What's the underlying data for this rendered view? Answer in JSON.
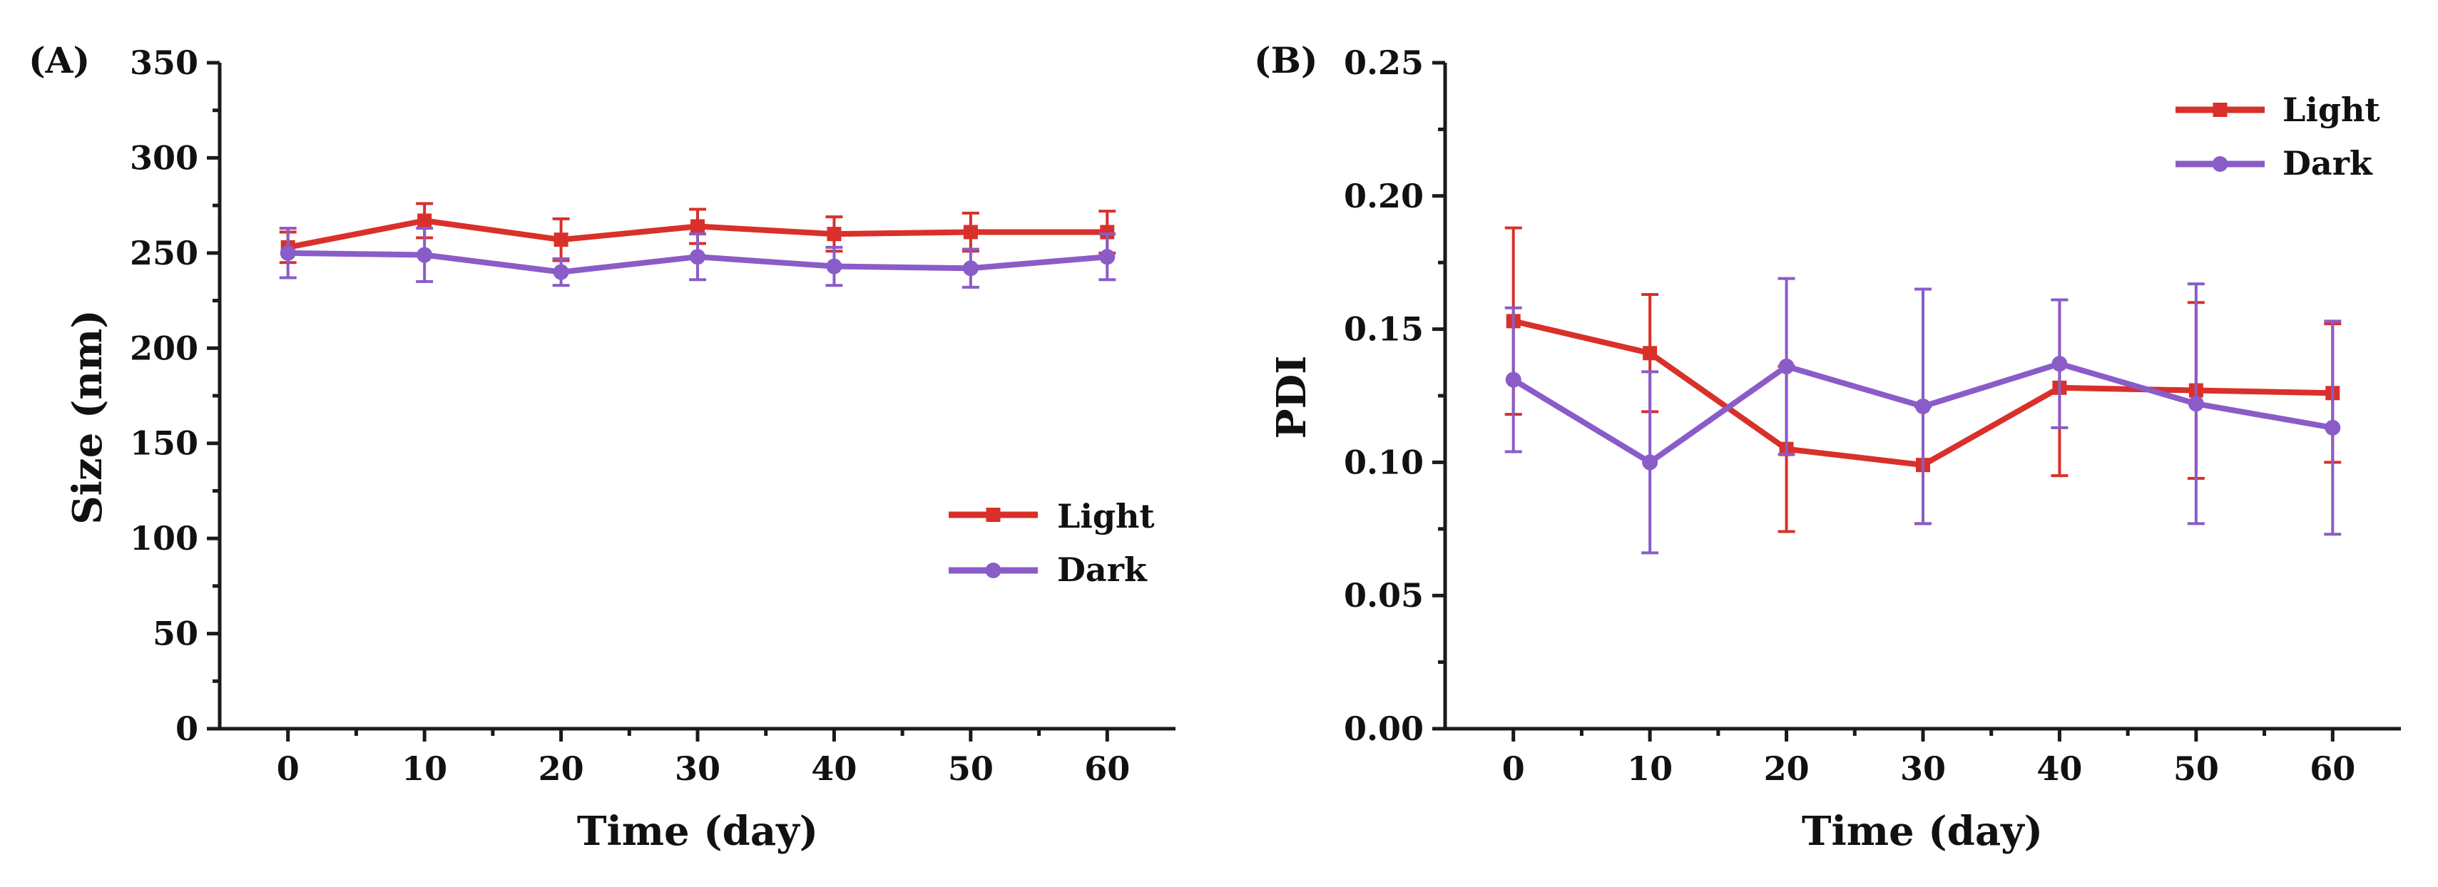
{
  "colors": {
    "light": "#d9302a",
    "dark": "#8a5cc8",
    "axis": "#1a1a1a"
  },
  "chart_data": [
    {
      "type": "line",
      "panel_label": "(A)",
      "xlabel": "Time (day)",
      "ylabel": "Size (nm)",
      "xlim": [
        -5,
        65
      ],
      "ylim": [
        0,
        350
      ],
      "xticks": [
        0,
        10,
        20,
        30,
        40,
        50,
        60
      ],
      "yticks": [
        0,
        50,
        100,
        150,
        200,
        250,
        300,
        350
      ],
      "ytick_labels": [
        "0",
        "50",
        "100",
        "150",
        "200",
        "250",
        "300",
        "350"
      ],
      "legend_position": "lower-right",
      "x": [
        0,
        10,
        20,
        30,
        40,
        50,
        60
      ],
      "series": [
        {
          "name": "Light",
          "color_key": "light",
          "marker": "square",
          "values": [
            253,
            267,
            257,
            264,
            260,
            261,
            261
          ],
          "errors": [
            8,
            9,
            11,
            9,
            9,
            10,
            11
          ]
        },
        {
          "name": "Dark",
          "color_key": "dark",
          "marker": "circle",
          "values": [
            250,
            249,
            240,
            248,
            243,
            242,
            248
          ],
          "errors": [
            13,
            14,
            7,
            12,
            10,
            10,
            12
          ]
        }
      ]
    },
    {
      "type": "line",
      "panel_label": "(B)",
      "xlabel": "Time (day)",
      "ylabel": "PDI",
      "xlim": [
        -5,
        65
      ],
      "ylim": [
        0,
        0.25
      ],
      "xticks": [
        0,
        10,
        20,
        30,
        40,
        50,
        60
      ],
      "yticks": [
        0,
        0.05,
        0.1,
        0.15,
        0.2,
        0.25
      ],
      "ytick_labels": [
        "0.00",
        "0.05",
        "0.10",
        "0.15",
        "0.20",
        "0.25"
      ],
      "legend_position": "top-right",
      "x": [
        0,
        10,
        20,
        30,
        40,
        50,
        60
      ],
      "series": [
        {
          "name": "Light",
          "color_key": "light",
          "marker": "square",
          "values": [
            0.153,
            0.141,
            0.105,
            0.099,
            0.128,
            0.127,
            0.126
          ],
          "errors": [
            0.035,
            0.022,
            0.031,
            0.022,
            0.033,
            0.033,
            0.026
          ]
        },
        {
          "name": "Dark",
          "color_key": "dark",
          "marker": "circle",
          "values": [
            0.131,
            0.1,
            0.136,
            0.121,
            0.137,
            0.122,
            0.113
          ],
          "errors": [
            0.027,
            0.034,
            0.033,
            0.044,
            0.024,
            0.045,
            0.04
          ]
        }
      ]
    }
  ]
}
